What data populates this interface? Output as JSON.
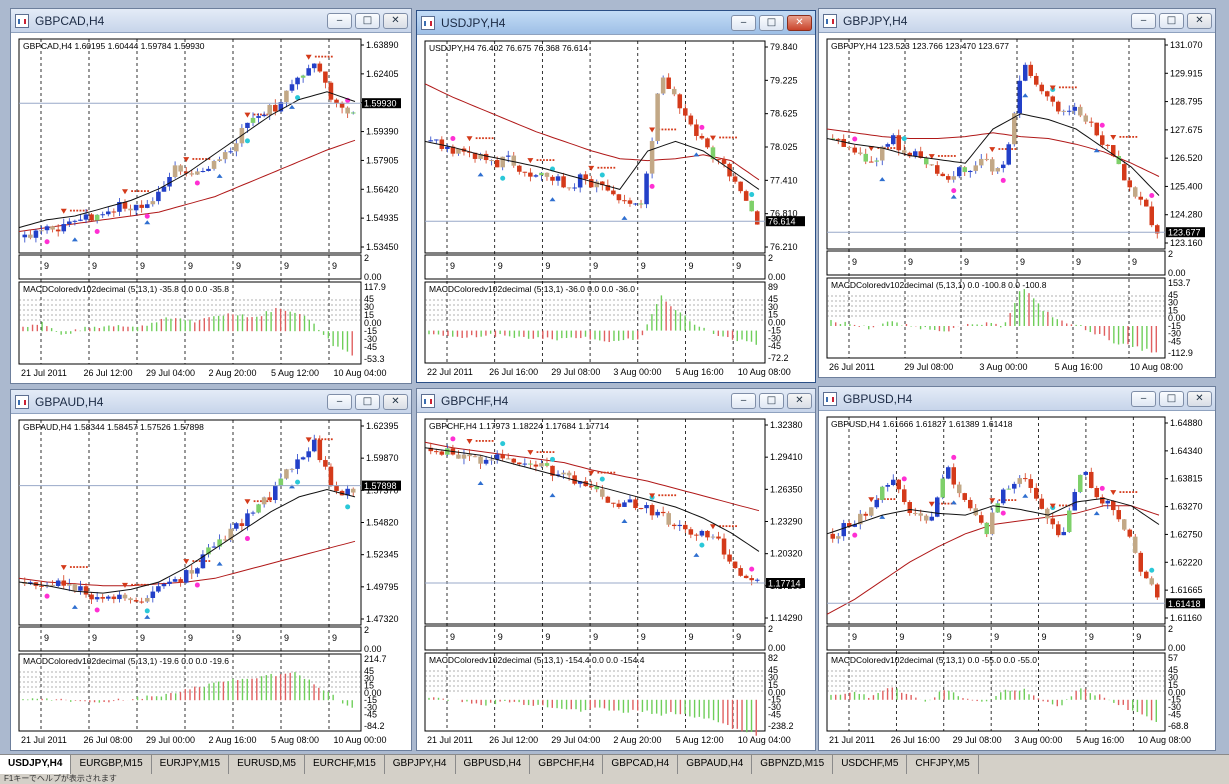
{
  "colors": {
    "grid": "#000000",
    "ma_red": "#b01818",
    "ma_black": "#111111",
    "cyan": "#2ac8d8",
    "pink": "#ff2fd3",
    "blue": "#2f6fd0",
    "price_line": "#98a8c8",
    "bull": "#2340c8",
    "bear": "#d43a1a",
    "tan": "#c2a886",
    "green": "#7ed06a",
    "macd_green": "#6fce5a",
    "macd_red": "#e06060"
  },
  "windows": [
    {
      "id": "gbpcad",
      "title": "GBPCAD,H4",
      "header": "GBPCAD,H4  1.60195 1.60444 1.59784 1.59930",
      "price_ticks": [
        "1.63890",
        "1.62405",
        "1.60920",
        "1.59390",
        "1.57905",
        "1.56420",
        "1.54935",
        "1.53450"
      ],
      "current_price": "1.59930",
      "current_frac": 0.3,
      "sub_ticks": [
        "2",
        "0.00"
      ],
      "macd_label": "MACDColoredv102decimal (5,13,1) -35.8 0.0 0.0 -35.8",
      "macd_ticks": [
        "117.9",
        "45",
        "30",
        "15",
        "0.00",
        "-15",
        "-30",
        "-45",
        "-53.3"
      ],
      "dates": [
        "21 Jul 2011",
        "26 Jul 12:00",
        "29 Jul 04:00",
        "2 Aug 20:00",
        "5 Aug 12:00",
        "10 Aug 04:00"
      ],
      "trend": [
        0.05,
        0.12,
        0.1,
        0.18,
        0.15,
        0.22,
        0.2,
        0.3,
        0.42,
        0.38,
        0.45,
        0.55,
        0.7,
        0.72,
        0.85,
        0.95,
        0.72,
        0.7
      ],
      "macd": [
        0.1,
        0.2,
        -0.1,
        0.05,
        0.1,
        0.15,
        0.08,
        0.25,
        0.3,
        0.2,
        0.35,
        0.4,
        0.3,
        0.5,
        0.45,
        0.2,
        -0.3,
        -0.5
      ],
      "red_ma": [
        0.08,
        0.1,
        0.12,
        0.14,
        0.16,
        0.18,
        0.22,
        0.26,
        0.32,
        0.38,
        0.44,
        0.5,
        0.55
      ],
      "black_ma": [
        0.1,
        0.14,
        0.16,
        0.2,
        0.24,
        0.3,
        0.38,
        0.48,
        0.58,
        0.68,
        0.76,
        0.8,
        0.75
      ],
      "sep_count": 7,
      "sub_nines": 7
    },
    {
      "id": "usdjpy",
      "title": "USDJPY,H4",
      "header": "USDJPY,H4  76.402 76.675 76.368 76.614",
      "price_ticks": [
        "79.840",
        "79.225",
        "78.625",
        "78.025",
        "77.410",
        "76.810",
        "76.210"
      ],
      "current_price": "76.614",
      "current_frac": 0.85,
      "sub_ticks": [
        "2",
        "0.00"
      ],
      "macd_label": "MACDColoredv102decimal (5,13,1) -36.0 0.0 0.0 -36.0",
      "macd_ticks": [
        "89",
        "45",
        "30",
        "15",
        "0.00",
        "-15",
        "-30",
        "-45",
        "-72.2"
      ],
      "dates": [
        "22 Jul 2011",
        "26 Jul 16:00",
        "29 Jul 08:00",
        "3 Aug 00:00",
        "5 Aug 16:00",
        "10 Aug 08:00"
      ],
      "trend": [
        0.55,
        0.5,
        0.48,
        0.44,
        0.45,
        0.4,
        0.38,
        0.32,
        0.36,
        0.3,
        0.25,
        0.2,
        0.92,
        0.7,
        0.55,
        0.45,
        0.3,
        0.12
      ],
      "macd": [
        -0.1,
        -0.12,
        -0.15,
        -0.1,
        -0.12,
        -0.15,
        -0.18,
        -0.2,
        -0.15,
        -0.2,
        -0.25,
        -0.15,
        0.8,
        0.4,
        0.1,
        -0.1,
        -0.2,
        -0.3
      ],
      "red_ma": [
        0.85,
        0.78,
        0.72,
        0.66,
        0.6,
        0.55,
        0.5,
        0.46,
        0.45,
        0.46,
        0.48,
        0.45,
        0.35
      ],
      "black_ma": [
        0.55,
        0.52,
        0.48,
        0.45,
        0.42,
        0.38,
        0.34,
        0.3,
        0.5,
        0.55,
        0.5,
        0.4,
        0.3
      ],
      "sep_count": 7,
      "sub_nines": 7
    },
    {
      "id": "gbpjpy",
      "title": "GBPJPY,H4",
      "header": "GBPJPY,H4  123.523 123.766 123.470 123.677",
      "price_ticks": [
        "131.070",
        "129.915",
        "128.795",
        "127.675",
        "126.520",
        "125.400",
        "124.280",
        "123.160"
      ],
      "current_price": "123.677",
      "current_frac": 0.92,
      "sub_ticks": [
        "2",
        "0.00"
      ],
      "macd_label": "MACDColoredv102decimal (5,13,1) 0.0 -100.8 0.0 -100.8",
      "macd_ticks": [
        "153.7",
        "45",
        "30",
        "15",
        "0.00",
        "-15",
        "-30",
        "-45",
        "-112.9"
      ],
      "dates": [
        "26 Jul 2011",
        "29 Jul 08:00",
        "3 Aug 00:00",
        "5 Aug 16:00",
        "10 Aug 08:00"
      ],
      "trend": [
        0.55,
        0.5,
        0.42,
        0.55,
        0.48,
        0.4,
        0.35,
        0.4,
        0.42,
        0.38,
        0.95,
        0.8,
        0.7,
        0.68,
        0.55,
        0.4,
        0.25,
        0.05
      ],
      "macd": [
        0.1,
        0.05,
        -0.05,
        0.1,
        0.0,
        -0.05,
        -0.1,
        0.0,
        0.05,
        0.0,
        0.9,
        0.4,
        0.1,
        0.0,
        -0.2,
        -0.4,
        -0.5,
        -0.6
      ],
      "red_ma": [
        0.6,
        0.58,
        0.56,
        0.55,
        0.55,
        0.56,
        0.58,
        0.56,
        0.55,
        0.52,
        0.48,
        0.42,
        0.35
      ],
      "black_ma": [
        0.55,
        0.52,
        0.5,
        0.46,
        0.44,
        0.42,
        0.6,
        0.68,
        0.65,
        0.6,
        0.5,
        0.4,
        0.25
      ],
      "sep_count": 6,
      "sub_nines": 6
    },
    {
      "id": "gbpaud",
      "title": "GBPAUD,H4",
      "header": "GBPAUD,H4  1.58344 1.58457 1.57526 1.57898",
      "price_ticks": [
        "1.62395",
        "1.59870",
        "1.57370",
        "1.54820",
        "1.52345",
        "1.49795",
        "1.47320"
      ],
      "current_price": "1.57898",
      "current_frac": 0.32,
      "sub_ticks": [
        "2",
        "0.00"
      ],
      "macd_label": "MACDColoredv102decimal (5,13,1) -19.6 0.0 0.0 -19.6",
      "macd_ticks": [
        "214.7",
        "45",
        "30",
        "15",
        "0.00",
        "-15",
        "-30",
        "-45",
        "-84.2"
      ],
      "dates": [
        "21 Jul 2011",
        "26 Jul 08:00",
        "29 Jul 00:00",
        "2 Aug 16:00",
        "5 Aug 08:00",
        "10 Aug 00:00"
      ],
      "trend": [
        0.2,
        0.2,
        0.18,
        0.15,
        0.12,
        0.1,
        0.12,
        0.15,
        0.2,
        0.3,
        0.42,
        0.5,
        0.6,
        0.7,
        0.85,
        0.95,
        0.7,
        0.68
      ],
      "macd": [
        0.05,
        0.05,
        0.0,
        -0.05,
        -0.05,
        0.0,
        0.05,
        0.1,
        0.2,
        0.3,
        0.4,
        0.5,
        0.55,
        0.6,
        0.7,
        0.4,
        0.1,
        -0.2
      ],
      "red_ma": [
        0.22,
        0.2,
        0.19,
        0.18,
        0.18,
        0.19,
        0.2,
        0.22,
        0.26,
        0.3,
        0.34,
        0.38,
        0.42
      ],
      "black_ma": [
        0.2,
        0.18,
        0.15,
        0.14,
        0.16,
        0.2,
        0.28,
        0.38,
        0.48,
        0.58,
        0.66,
        0.7,
        0.66
      ],
      "sep_count": 7,
      "sub_nines": 7
    },
    {
      "id": "gbpchf",
      "title": "GBPCHF,H4",
      "header": "GBPCHF,H4  1.17973 1.18224 1.17684 1.17714",
      "price_ticks": [
        "1.32380",
        "1.29410",
        "1.26350",
        "1.23290",
        "1.20320",
        "1.17260",
        "1.14290"
      ],
      "current_price": "1.17714",
      "current_frac": 0.8,
      "sub_ticks": [
        "2",
        "0.00"
      ],
      "macd_label": "MACDColoredv102decimal (5,13,1) -154.4 0.0 0.0 -154.4",
      "macd_ticks": [
        "82",
        "45",
        "30",
        "15",
        "0.00",
        "-15",
        "-30",
        "-45",
        "-238.2"
      ],
      "dates": [
        "21 Jul 2011",
        "26 Jul 12:00",
        "29 Jul 04:00",
        "2 Aug 20:00",
        "5 Aug 12:00",
        "10 Aug 04:00"
      ],
      "trend": [
        0.92,
        0.9,
        0.88,
        0.85,
        0.86,
        0.84,
        0.8,
        0.76,
        0.7,
        0.66,
        0.62,
        0.6,
        0.55,
        0.5,
        0.46,
        0.4,
        0.25,
        0.2
      ],
      "macd": [
        0.05,
        0.0,
        -0.05,
        -0.1,
        -0.05,
        -0.1,
        -0.15,
        -0.2,
        -0.25,
        -0.2,
        -0.3,
        -0.25,
        -0.35,
        -0.3,
        -0.4,
        -0.5,
        -0.7,
        -0.8
      ],
      "red_ma": [
        0.95,
        0.92,
        0.9,
        0.88,
        0.86,
        0.84,
        0.8,
        0.77,
        0.74,
        0.7,
        0.66,
        0.62,
        0.58
      ],
      "black_ma": [
        0.92,
        0.9,
        0.88,
        0.84,
        0.8,
        0.76,
        0.72,
        0.68,
        0.64,
        0.6,
        0.54,
        0.46,
        0.36
      ],
      "sep_count": 7,
      "sub_nines": 7
    },
    {
      "id": "gbpusd",
      "title": "GBPUSD,H4",
      "header": "GBPUSD,H4  1.61666 1.61827 1.61389 1.61418",
      "price_ticks": [
        "1.64880",
        "1.64340",
        "1.63815",
        "1.63270",
        "1.62750",
        "1.62220",
        "1.61665",
        "1.61160"
      ],
      "current_price": "1.61418",
      "current_frac": 0.9,
      "sub_ticks": [
        "2",
        "0.00"
      ],
      "macd_label": "MACDColoredv102decimal (5,13,1) 0.0 -55.0 0.0 -55.0",
      "macd_ticks": [
        "57",
        "45",
        "30",
        "15",
        "0.00",
        "-15",
        "-30",
        "-45",
        "-68.8"
      ],
      "dates": [
        "21 Jul 2011",
        "26 Jul 16:00",
        "29 Jul 08:00",
        "3 Aug 00:00",
        "5 Aug 16:00",
        "10 Aug 08:00"
      ],
      "trend": [
        0.45,
        0.5,
        0.6,
        0.75,
        0.55,
        0.5,
        0.8,
        0.6,
        0.45,
        0.7,
        0.75,
        0.55,
        0.45,
        0.8,
        0.65,
        0.55,
        0.3,
        0.1
      ],
      "macd": [
        0.1,
        0.2,
        0.05,
        0.3,
        0.15,
        -0.05,
        0.25,
        0.05,
        -0.1,
        0.2,
        0.25,
        0.0,
        -0.15,
        0.3,
        0.1,
        -0.1,
        -0.3,
        -0.5
      ],
      "red_ma": [
        0.02,
        0.1,
        0.2,
        0.3,
        0.38,
        0.45,
        0.5,
        0.52,
        0.54,
        0.56,
        0.6,
        0.6,
        0.55
      ],
      "black_ma": [
        0.45,
        0.5,
        0.55,
        0.58,
        0.56,
        0.55,
        0.6,
        0.58,
        0.55,
        0.62,
        0.64,
        0.6,
        0.5
      ],
      "sep_count": 7,
      "sub_nines": 7
    }
  ],
  "tabs": [
    "USDJPY,H4",
    "EURGBP,M15",
    "EURJPY,M15",
    "EURUSD,M5",
    "EURCHF,M15",
    "GBPJPY,H4",
    "GBPUSD,H4",
    "GBPCHF,H4",
    "GBPCAD,H4",
    "GBPAUD,H4",
    "GBPNZD,M15",
    "USDCHF,M5",
    "CHFJPY,M5"
  ],
  "active_tab": 0,
  "window_buttons": {
    "minimize": "‒",
    "maximize": "□",
    "close": "✕"
  },
  "nine_mark": "9",
  "status_text": "F1キーでヘルプが表示されます"
}
